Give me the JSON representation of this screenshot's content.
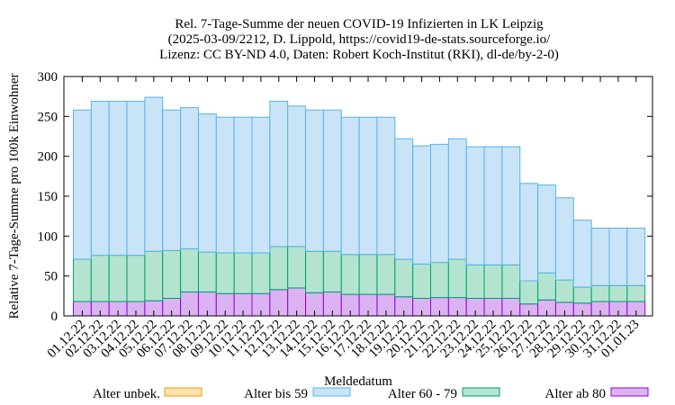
{
  "chart_data": {
    "type": "bar",
    "stacked": true,
    "title_lines": [
      "Rel. 7-Tage-Summe der neuen COVID-19 Infizierten in LK Leipzig",
      "(2025-03-09/2212, D. Lippold, https://covid19-de-stats.sourceforge.io/",
      "Lizenz: CC BY-ND 4.0, Daten: Robert Koch-Institut (RKI), dl-de/by-2-0)"
    ],
    "xlabel": "Meldedatum",
    "ylabel": "Relative 7-Tage-Summe pro 100k Einwohner",
    "ylim": [
      0,
      300
    ],
    "yticks": [
      0,
      50,
      100,
      150,
      200,
      250,
      300
    ],
    "categories": [
      "01.12.22",
      "02.12.22",
      "03.12.22",
      "04.12.22",
      "05.12.22",
      "06.12.22",
      "07.12.22",
      "08.12.22",
      "09.12.22",
      "10.12.22",
      "11.12.22",
      "12.12.22",
      "13.12.22",
      "14.12.22",
      "15.12.22",
      "16.12.22",
      "17.12.22",
      "18.12.22",
      "19.12.22",
      "20.12.22",
      "21.12.22",
      "22.12.22",
      "23.12.22",
      "24.12.22",
      "25.12.22",
      "26.12.22",
      "27.12.22",
      "28.12.22",
      "29.12.22",
      "30.12.22",
      "31.12.22",
      "01.01.23"
    ],
    "series": [
      {
        "name": "Alter ab 80",
        "fill": "#dcb3f2",
        "stroke": "#9400d3",
        "values": [
          18,
          18,
          18,
          18,
          19,
          22,
          30,
          30,
          28,
          28,
          28,
          33,
          35,
          29,
          30,
          27,
          27,
          27,
          24,
          22,
          23,
          23,
          22,
          22,
          22,
          15,
          20,
          17,
          16,
          18,
          18,
          18
        ]
      },
      {
        "name": "Alter 60 - 79",
        "fill": "#b4e4cf",
        "stroke": "#009e73",
        "values": [
          53,
          58,
          58,
          58,
          62,
          60,
          54,
          50,
          51,
          51,
          51,
          54,
          52,
          52,
          51,
          50,
          50,
          50,
          47,
          43,
          44,
          48,
          42,
          42,
          42,
          29,
          34,
          28,
          20,
          20,
          20,
          20
        ]
      },
      {
        "name": "Alter bis 59",
        "fill": "#c9e4f7",
        "stroke": "#56b4e9",
        "values": [
          187,
          193,
          193,
          193,
          193,
          176,
          177,
          173,
          170,
          170,
          170,
          182,
          176,
          177,
          177,
          172,
          172,
          172,
          151,
          148,
          148,
          151,
          148,
          148,
          148,
          122,
          110,
          103,
          84,
          72,
          72,
          72
        ]
      },
      {
        "name": "Alter unbek.",
        "fill": "#fbe3b0",
        "stroke": "#e69f00",
        "values": [
          0,
          0,
          0,
          0,
          0,
          0,
          0,
          0,
          0,
          0,
          0,
          0,
          0,
          0,
          0,
          0,
          0,
          0,
          0,
          0,
          0,
          0,
          0,
          0,
          0,
          0,
          0,
          0,
          0,
          0,
          0,
          0
        ]
      }
    ],
    "legend": {
      "position": "bottom",
      "order": [
        "Alter unbek.",
        "Alter bis 59",
        "Alter 60 - 79",
        "Alter ab 80"
      ]
    }
  }
}
